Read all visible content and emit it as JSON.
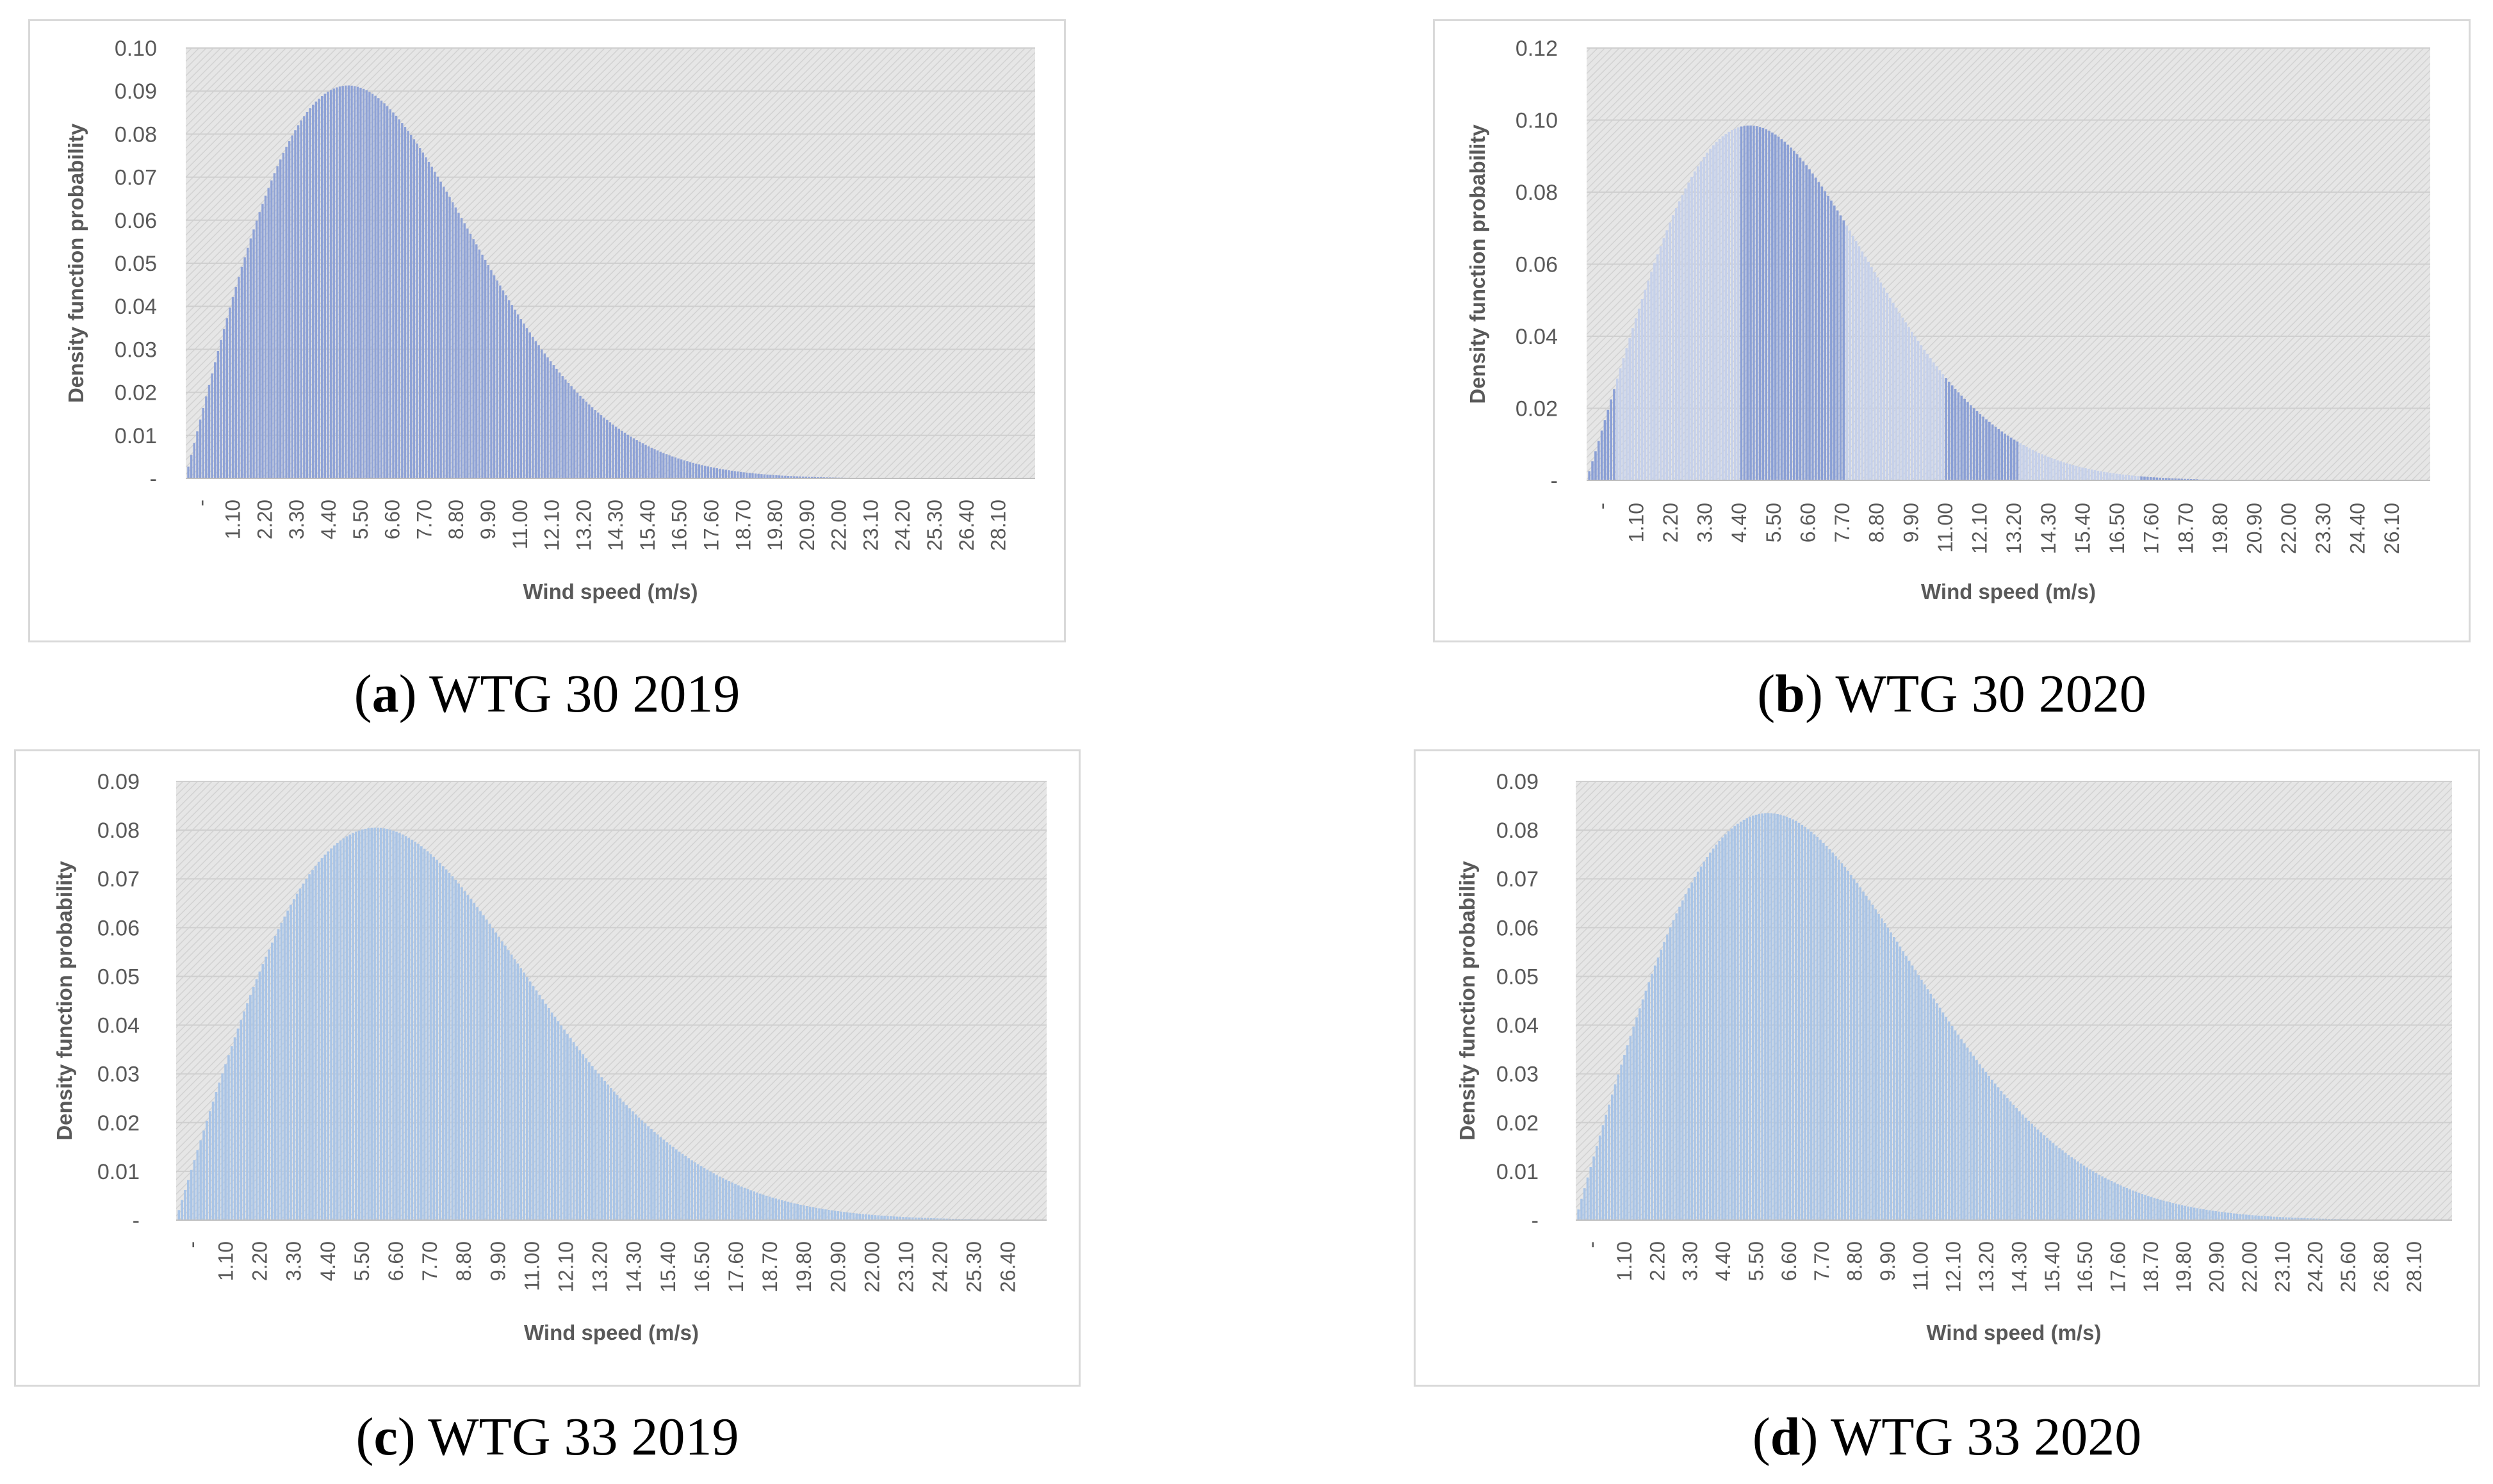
{
  "figure": {
    "captions": [
      {
        "letter": "a",
        "text": "WTG 30 2019"
      },
      {
        "letter": "b",
        "text": "WTG 30 2020"
      },
      {
        "letter": "c",
        "text": "WTG 33 2019"
      },
      {
        "letter": "d",
        "text": "WTG 33 2020"
      }
    ]
  },
  "chart_data": [
    {
      "id": "a",
      "type": "bar",
      "title": "",
      "xlabel": "Wind speed (m/s)",
      "ylabel": "Density function probability",
      "ylim": [
        0,
        0.1
      ],
      "y_ticks": [
        "-",
        "0.01",
        "0.02",
        "0.03",
        "0.04",
        "0.05",
        "0.06",
        "0.07",
        "0.08",
        "0.09",
        "0.10"
      ],
      "x_ticks": [
        "-",
        "1.10",
        "2.20",
        "3.30",
        "4.40",
        "5.50",
        "6.60",
        "7.70",
        "8.80",
        "9.90",
        "11.00",
        "12.10",
        "13.20",
        "14.30",
        "15.40",
        "16.50",
        "17.60",
        "18.70",
        "19.80",
        "20.90",
        "22.00",
        "23.10",
        "24.20",
        "25.30",
        "26.40",
        "28.10"
      ],
      "x_range": [
        0,
        28.6
      ],
      "distribution": {
        "family": "weibull",
        "k": 2.0,
        "c": 7.75,
        "peak": 0.0913
      },
      "bar_color": "#8ea2d6",
      "highlight_color": "#8ea2d6",
      "highlight_ranges": [],
      "grid": true
    },
    {
      "id": "b",
      "type": "bar",
      "title": "",
      "xlabel": "Wind speed (m/s)",
      "ylabel": "Density function probability",
      "ylim": [
        0,
        0.12
      ],
      "y_ticks": [
        "-",
        "0.02",
        "0.04",
        "0.06",
        "0.08",
        "0.10",
        "0.12"
      ],
      "x_ticks": [
        "-",
        "1.10",
        "2.20",
        "3.30",
        "4.40",
        "5.50",
        "6.60",
        "7.70",
        "8.80",
        "9.90",
        "11.00",
        "12.10",
        "13.20",
        "14.30",
        "15.40",
        "16.50",
        "17.60",
        "18.70",
        "19.80",
        "20.90",
        "22.00",
        "23.30",
        "24.40",
        "26.10"
      ],
      "x_range": [
        0,
        27.2
      ],
      "distribution": {
        "family": "weibull",
        "k": 2.05,
        "c": 7.3,
        "peak": 0.0985
      },
      "bar_color": "#c5d0ea",
      "highlight_color": "#8a9fd5",
      "highlight_ranges": [
        [
          0,
          0.9
        ],
        [
          4.9,
          8.3
        ],
        [
          11.5,
          13.9
        ],
        [
          17.8,
          19.8
        ]
      ],
      "grid": true
    },
    {
      "id": "c",
      "type": "bar",
      "title": "",
      "xlabel": "Wind speed (m/s)",
      "ylabel": "Density function probability",
      "ylim": [
        0,
        0.09
      ],
      "y_ticks": [
        "-",
        "0.01",
        "0.02",
        "0.03",
        "0.04",
        "0.05",
        "0.06",
        "0.07",
        "0.08",
        "0.09"
      ],
      "x_ticks": [
        "-",
        "1.10",
        "2.20",
        "3.30",
        "4.40",
        "5.50",
        "6.60",
        "7.70",
        "8.80",
        "9.90",
        "11.00",
        "12.10",
        "13.20",
        "14.30",
        "15.40",
        "16.50",
        "17.60",
        "18.70",
        "19.80",
        "20.90",
        "22.00",
        "23.10",
        "24.20",
        "25.30",
        "26.40"
      ],
      "x_range": [
        0,
        28.0
      ],
      "distribution": {
        "family": "weibull",
        "k": 2.0,
        "c": 9.1,
        "peak": 0.0805
      },
      "bar_color": "#a9c4e6",
      "highlight_color": "#a9c4e6",
      "highlight_ranges": [],
      "grid": true
    },
    {
      "id": "d",
      "type": "bar",
      "title": "",
      "xlabel": "Wind speed (m/s)",
      "ylabel": "Density function probability",
      "ylim": [
        0,
        0.09
      ],
      "y_ticks": [
        "-",
        "0.01",
        "0.02",
        "0.03",
        "0.04",
        "0.05",
        "0.06",
        "0.07",
        "0.08",
        "0.09"
      ],
      "x_ticks": [
        "-",
        "1.10",
        "2.20",
        "3.30",
        "4.40",
        "5.50",
        "6.60",
        "7.70",
        "8.80",
        "9.90",
        "11.00",
        "12.10",
        "13.20",
        "14.30",
        "15.40",
        "16.50",
        "17.60",
        "18.70",
        "19.80",
        "20.90",
        "22.00",
        "23.10",
        "24.20",
        "25.60",
        "26.80",
        "28.10"
      ],
      "x_range": [
        0,
        28.6
      ],
      "distribution": {
        "family": "weibull",
        "k": 2.0,
        "c": 8.9,
        "peak": 0.0835
      },
      "bar_color": "#a9c4e6",
      "highlight_color": "#a9c4e6",
      "highlight_ranges": [],
      "grid": true
    }
  ]
}
